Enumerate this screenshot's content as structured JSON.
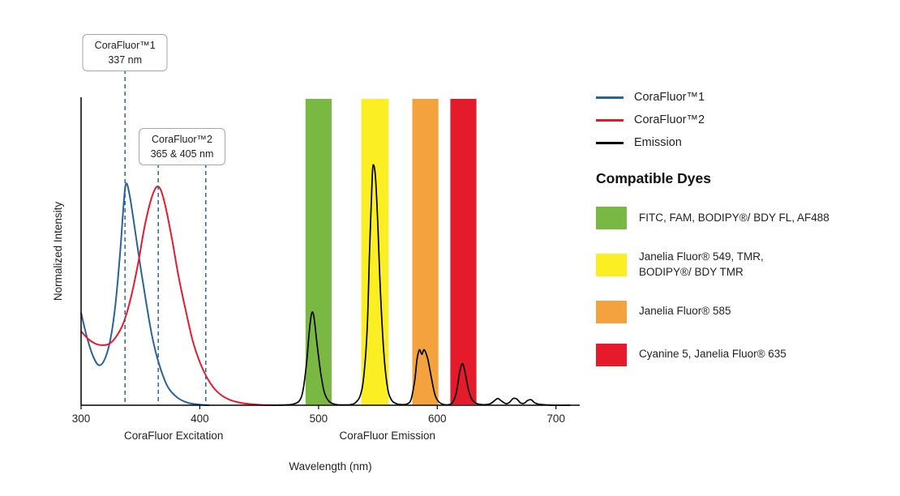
{
  "chart_data": {
    "type": "line",
    "title": "",
    "xlabel": "Wavelength (nm)",
    "ylabel": "Normalized Intensity",
    "xlim": [
      300,
      720
    ],
    "ylim": [
      0,
      1
    ],
    "x_ticks": [
      300,
      400,
      500,
      600,
      700
    ],
    "grid": false,
    "legend_position": "right",
    "dash_color": "#2a6496",
    "x_section_labels": [
      {
        "label": "CoraFluor Excitation",
        "center_nm": 378
      },
      {
        "label": "CoraFluor Emission",
        "center_nm": 558
      }
    ],
    "bands": [
      {
        "name": "green",
        "color": "#79b943",
        "range_nm": [
          489,
          511
        ]
      },
      {
        "name": "yellow",
        "color": "#fbee23",
        "range_nm": [
          536,
          559
        ]
      },
      {
        "name": "orange",
        "color": "#f4a23e",
        "range_nm": [
          579,
          601
        ]
      },
      {
        "name": "red",
        "color": "#e51b2c",
        "range_nm": [
          611,
          633
        ]
      }
    ],
    "annotations": [
      {
        "center_nm": 337,
        "lines_nm": [
          337
        ],
        "lines": [
          "CoraFluor™1",
          "337 nm"
        ]
      },
      {
        "center_nm": 385,
        "lines_nm": [
          365,
          405
        ],
        "lines": [
          "CoraFluor™2",
          "365 & 405 nm"
        ]
      }
    ],
    "series": [
      {
        "id": "corafluor1",
        "name": "CoraFluor™1",
        "color": "#2a6496",
        "points": [
          [
            300,
            0.3
          ],
          [
            305,
            0.22
          ],
          [
            310,
            0.16
          ],
          [
            315,
            0.13
          ],
          [
            320,
            0.15
          ],
          [
            325,
            0.22
          ],
          [
            329,
            0.33
          ],
          [
            333,
            0.5
          ],
          [
            336,
            0.66
          ],
          [
            338,
            0.72
          ],
          [
            341,
            0.68
          ],
          [
            345,
            0.58
          ],
          [
            350,
            0.45
          ],
          [
            355,
            0.33
          ],
          [
            360,
            0.22
          ],
          [
            366,
            0.13
          ],
          [
            373,
            0.06
          ],
          [
            381,
            0.025
          ],
          [
            390,
            0.008
          ],
          [
            400,
            0.002
          ],
          [
            408,
            0
          ]
        ]
      },
      {
        "id": "corafluor2",
        "name": "CoraFluor™2",
        "color": "#e51b2c",
        "points": [
          [
            300,
            0.24
          ],
          [
            306,
            0.215
          ],
          [
            312,
            0.2
          ],
          [
            318,
            0.195
          ],
          [
            324,
            0.2
          ],
          [
            330,
            0.225
          ],
          [
            336,
            0.27
          ],
          [
            342,
            0.35
          ],
          [
            348,
            0.46
          ],
          [
            353,
            0.57
          ],
          [
            358,
            0.655
          ],
          [
            362,
            0.7
          ],
          [
            365,
            0.71
          ],
          [
            368,
            0.69
          ],
          [
            372,
            0.63
          ],
          [
            377,
            0.53
          ],
          [
            382,
            0.42
          ],
          [
            388,
            0.31
          ],
          [
            394,
            0.21
          ],
          [
            400,
            0.14
          ],
          [
            406,
            0.09
          ],
          [
            412,
            0.055
          ],
          [
            418,
            0.033
          ],
          [
            425,
            0.018
          ],
          [
            433,
            0.009
          ],
          [
            442,
            0.004
          ],
          [
            452,
            0.001
          ],
          [
            462,
            0
          ]
        ]
      },
      {
        "id": "emission",
        "name": "Emission",
        "color": "#000000",
        "points": [
          [
            462,
            0
          ],
          [
            472,
            0.001
          ],
          [
            479,
            0.004
          ],
          [
            484,
            0.015
          ],
          [
            487,
            0.05
          ],
          [
            490,
            0.14
          ],
          [
            492,
            0.23
          ],
          [
            494,
            0.295
          ],
          [
            496,
            0.29
          ],
          [
            499,
            0.19
          ],
          [
            502,
            0.1
          ],
          [
            505,
            0.04
          ],
          [
            509,
            0.012
          ],
          [
            514,
            0.003
          ],
          [
            520,
            0.001
          ],
          [
            527,
            0.002
          ],
          [
            531,
            0.008
          ],
          [
            535,
            0.03
          ],
          [
            538,
            0.09
          ],
          [
            541,
            0.25
          ],
          [
            543,
            0.5
          ],
          [
            545,
            0.72
          ],
          [
            546,
            0.78
          ],
          [
            548,
            0.74
          ],
          [
            550,
            0.58
          ],
          [
            552,
            0.38
          ],
          [
            555,
            0.17
          ],
          [
            558,
            0.06
          ],
          [
            561,
            0.02
          ],
          [
            565,
            0.006
          ],
          [
            570,
            0.002
          ],
          [
            575,
            0.005
          ],
          [
            578,
            0.02
          ],
          [
            581,
            0.08
          ],
          [
            583,
            0.15
          ],
          [
            585,
            0.18
          ],
          [
            587,
            0.165
          ],
          [
            589,
            0.18
          ],
          [
            592,
            0.15
          ],
          [
            595,
            0.09
          ],
          [
            598,
            0.035
          ],
          [
            601,
            0.012
          ],
          [
            605,
            0.003
          ],
          [
            610,
            0.002
          ],
          [
            613,
            0.01
          ],
          [
            616,
            0.04
          ],
          [
            619,
            0.11
          ],
          [
            621,
            0.135
          ],
          [
            623,
            0.115
          ],
          [
            626,
            0.055
          ],
          [
            629,
            0.02
          ],
          [
            633,
            0.006
          ],
          [
            638,
            0.002
          ],
          [
            644,
            0.004
          ],
          [
            648,
            0.014
          ],
          [
            651,
            0.022
          ],
          [
            654,
            0.014
          ],
          [
            658,
            0.005
          ],
          [
            661,
            0.01
          ],
          [
            664,
            0.022
          ],
          [
            667,
            0.02
          ],
          [
            670,
            0.008
          ],
          [
            673,
            0.006
          ],
          [
            676,
            0.015
          ],
          [
            679,
            0.018
          ],
          [
            682,
            0.008
          ],
          [
            686,
            0.003
          ],
          [
            692,
            0.001
          ],
          [
            700,
            0
          ],
          [
            712,
            0
          ]
        ]
      }
    ]
  },
  "legend": {
    "items": [
      {
        "label": "CoraFluor™1",
        "color": "#2a6496"
      },
      {
        "label": "CoraFluor™2",
        "color": "#e51b2c"
      },
      {
        "label": "Emission",
        "color": "#000000"
      }
    ]
  },
  "dyes": {
    "heading": "Compatible Dyes",
    "items": [
      {
        "label": "FITC, FAM, BODIPY®/ BDY FL, AF488",
        "color": "#79b943"
      },
      {
        "label": "Janelia Fluor® 549, TMR,\nBODIPY®/ BDY TMR",
        "color": "#fbee23"
      },
      {
        "label": "Janelia Fluor® 585",
        "color": "#f4a23e"
      },
      {
        "label": "Cyanine 5, Janelia Fluor® 635",
        "color": "#e51b2c"
      }
    ]
  }
}
